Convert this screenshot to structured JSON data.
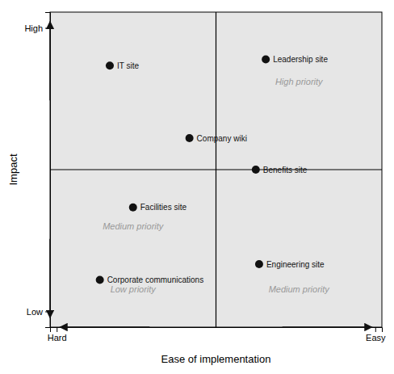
{
  "chart_data": {
    "type": "scatter",
    "xlabel": "Ease of implementation",
    "ylabel": "Impact",
    "xlim": [
      0,
      10
    ],
    "ylim": [
      0,
      10
    ],
    "xticks": [
      {
        "value": 0.2,
        "label": "Hard"
      },
      {
        "value": 9.8,
        "label": "Easy"
      }
    ],
    "yticks": [
      {
        "value": 9.5,
        "label": "High"
      },
      {
        "value": 0.5,
        "label": "Low"
      }
    ],
    "x": [
      1.8,
      6.5,
      4.2,
      6.2,
      2.5,
      1.5,
      6.3
    ],
    "y": [
      8.3,
      8.5,
      6.0,
      5.0,
      3.8,
      1.5,
      2.0
    ],
    "labels": [
      "IT site",
      "Leadership site",
      "Company wiki",
      "Benefits site",
      "Facilities site",
      "Corporate communications",
      "Engineering site"
    ],
    "color": "#111111",
    "vlines": [
      5
    ],
    "hlines": [
      5
    ],
    "annotations": [
      {
        "text": "Medium priority",
        "x": 2.5,
        "y": 3.2
      },
      {
        "text": "High priority",
        "x": 7.5,
        "y": 7.8
      },
      {
        "text": "Low priority",
        "x": 2.5,
        "y": 1.2
      },
      {
        "text": "Medium priority",
        "x": 7.5,
        "y": 1.2
      }
    ],
    "arrows": [
      {
        "from": [
          0,
          7.2
        ],
        "to": [
          0,
          9.7
        ]
      },
      {
        "from": [
          0,
          2.8
        ],
        "to": [
          0,
          0.3
        ]
      },
      {
        "from": [
          7.0,
          0
        ],
        "to": [
          9.7,
          0
        ]
      },
      {
        "from": [
          3.0,
          0
        ],
        "to": [
          0.3,
          0
        ]
      }
    ]
  }
}
